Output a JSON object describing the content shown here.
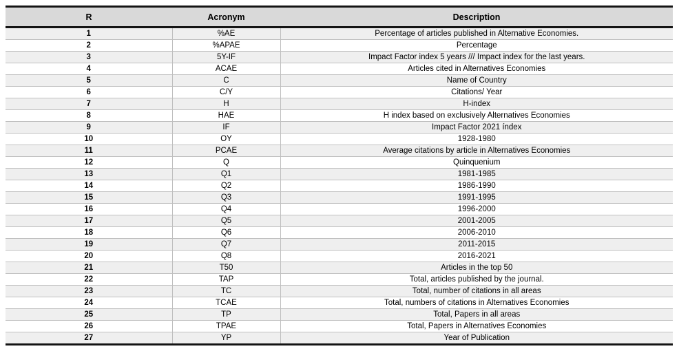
{
  "colors": {
    "header_bg": "#d9d9d9",
    "row_alt_bg": "#efefef",
    "grid_line": "#bfbfbf",
    "frame_line": "#141414",
    "text": "#000000"
  },
  "table": {
    "headers": [
      "R",
      "Acronym",
      "Description"
    ],
    "rows": [
      [
        "1",
        "%AE",
        "Percentage of articles published in Alternative Economies."
      ],
      [
        "2",
        "%APAE",
        "Percentage"
      ],
      [
        "3",
        "5Y-IF",
        "Impact Factor index 5 years /// Impact index for the last years."
      ],
      [
        "4",
        "ACAE",
        "Articles cited in Alternatives Economies"
      ],
      [
        "5",
        "C",
        "Name of Country"
      ],
      [
        "6",
        "C/Y",
        "Citations/ Year"
      ],
      [
        "7",
        "H",
        "H-index"
      ],
      [
        "8",
        "HAE",
        "H index based on exclusively Alternatives Economies"
      ],
      [
        "9",
        "IF",
        "Impact Factor 2021 índex"
      ],
      [
        "10",
        "OY",
        "1928-1980"
      ],
      [
        "11",
        "PCAE",
        "Average citations by article in Alternatives Economies"
      ],
      [
        "12",
        "Q",
        "Quinquenium"
      ],
      [
        "13",
        "Q1",
        "1981-1985"
      ],
      [
        "14",
        "Q2",
        "1986-1990"
      ],
      [
        "15",
        "Q3",
        "1991-1995"
      ],
      [
        "16",
        "Q4",
        "1996-2000"
      ],
      [
        "17",
        "Q5",
        "2001-2005"
      ],
      [
        "18",
        "Q6",
        "2006-2010"
      ],
      [
        "19",
        "Q7",
        "2011-2015"
      ],
      [
        "20",
        "Q8",
        "2016-2021"
      ],
      [
        "21",
        "T50",
        "Articles in the top 50"
      ],
      [
        "22",
        "TAP",
        "Total, articles published by the journal."
      ],
      [
        "23",
        "TC",
        "Total, number of citations in all areas"
      ],
      [
        "24",
        "TCAE",
        "Total, numbers of citations in Alternatives Economies"
      ],
      [
        "25",
        "TP",
        "Total, Papers in all areas"
      ],
      [
        "26",
        "TPAE",
        "Total, Papers in Alternatives Economies"
      ],
      [
        "27",
        "YP",
        "Year of Publication"
      ]
    ]
  }
}
